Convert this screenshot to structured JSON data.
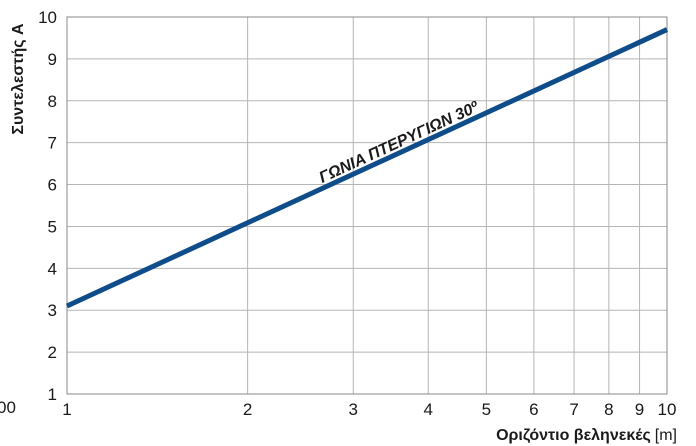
{
  "chart_data": {
    "type": "line",
    "title": "",
    "xlabel_bold": "Οριζόντιο βεληνεκές",
    "xlabel_unit": "[m]",
    "ylabel": "Συντελεστής A",
    "x_scale": "log",
    "xlim": [
      1,
      10
    ],
    "ylim": [
      1,
      10
    ],
    "x_ticks": [
      1,
      2,
      3,
      4,
      5,
      6,
      7,
      8,
      9,
      10
    ],
    "y_ticks": [
      1,
      2,
      3,
      4,
      5,
      6,
      7,
      8,
      9,
      10
    ],
    "partial_left_label": "00",
    "grid": true,
    "series": [
      {
        "name": "",
        "color": "#0f4c8a",
        "x": [
          1,
          10
        ],
        "y": [
          3.1,
          9.7
        ]
      }
    ],
    "annotation": {
      "text": "ΓΩΝΙΑ ΠΤΕΡΥΓΙΩΝ 30º",
      "x": 3.6,
      "y": 6.9
    }
  }
}
